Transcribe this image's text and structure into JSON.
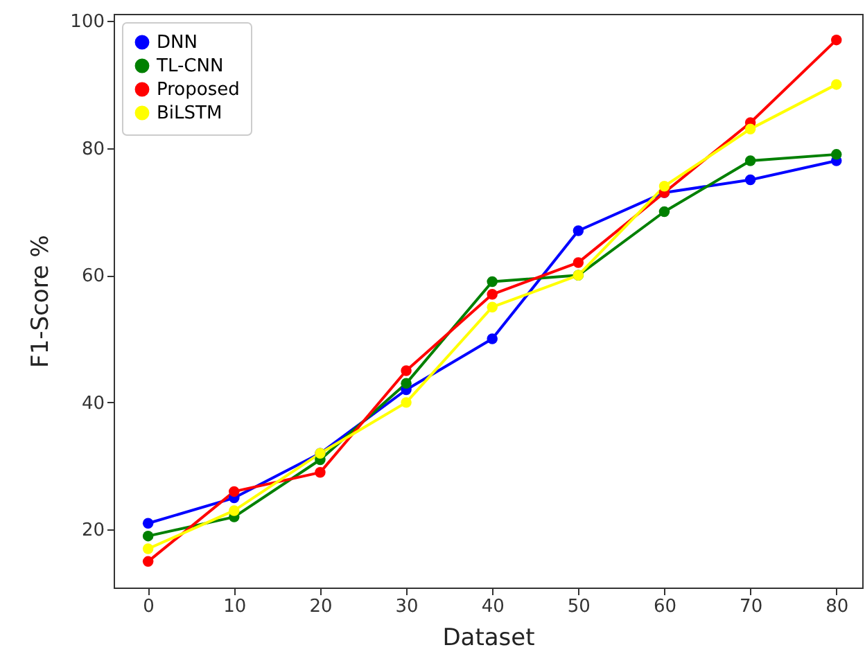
{
  "chart_data": {
    "type": "line",
    "xlabel": "Dataset",
    "ylabel": "F1-Score %",
    "x": [
      0,
      10,
      20,
      30,
      40,
      50,
      60,
      70,
      80
    ],
    "series": [
      {
        "name": "DNN",
        "color": "#0000ff",
        "values": [
          21,
          25,
          32,
          42,
          50,
          67,
          73,
          75,
          78
        ]
      },
      {
        "name": "TL-CNN",
        "color": "#008000",
        "values": [
          19,
          22,
          31,
          43,
          59,
          60,
          70,
          78,
          79
        ]
      },
      {
        "name": "Proposed",
        "color": "#ff0000",
        "values": [
          15,
          26,
          29,
          45,
          57,
          62,
          73,
          84,
          97
        ]
      },
      {
        "name": "BiLSTM",
        "color": "#ffff00",
        "values": [
          17,
          23,
          32,
          40,
          55,
          60,
          74,
          83,
          90
        ]
      }
    ],
    "xlim": [
      -4,
      83
    ],
    "xticks": [
      0,
      10,
      20,
      30,
      40,
      50,
      60,
      70,
      80
    ],
    "ylim": [
      10.9,
      101.1
    ],
    "yticks": [
      20,
      40,
      60,
      80,
      100
    ],
    "grid": false,
    "legend": "top left",
    "marker": "circle",
    "line_style": "solid"
  }
}
